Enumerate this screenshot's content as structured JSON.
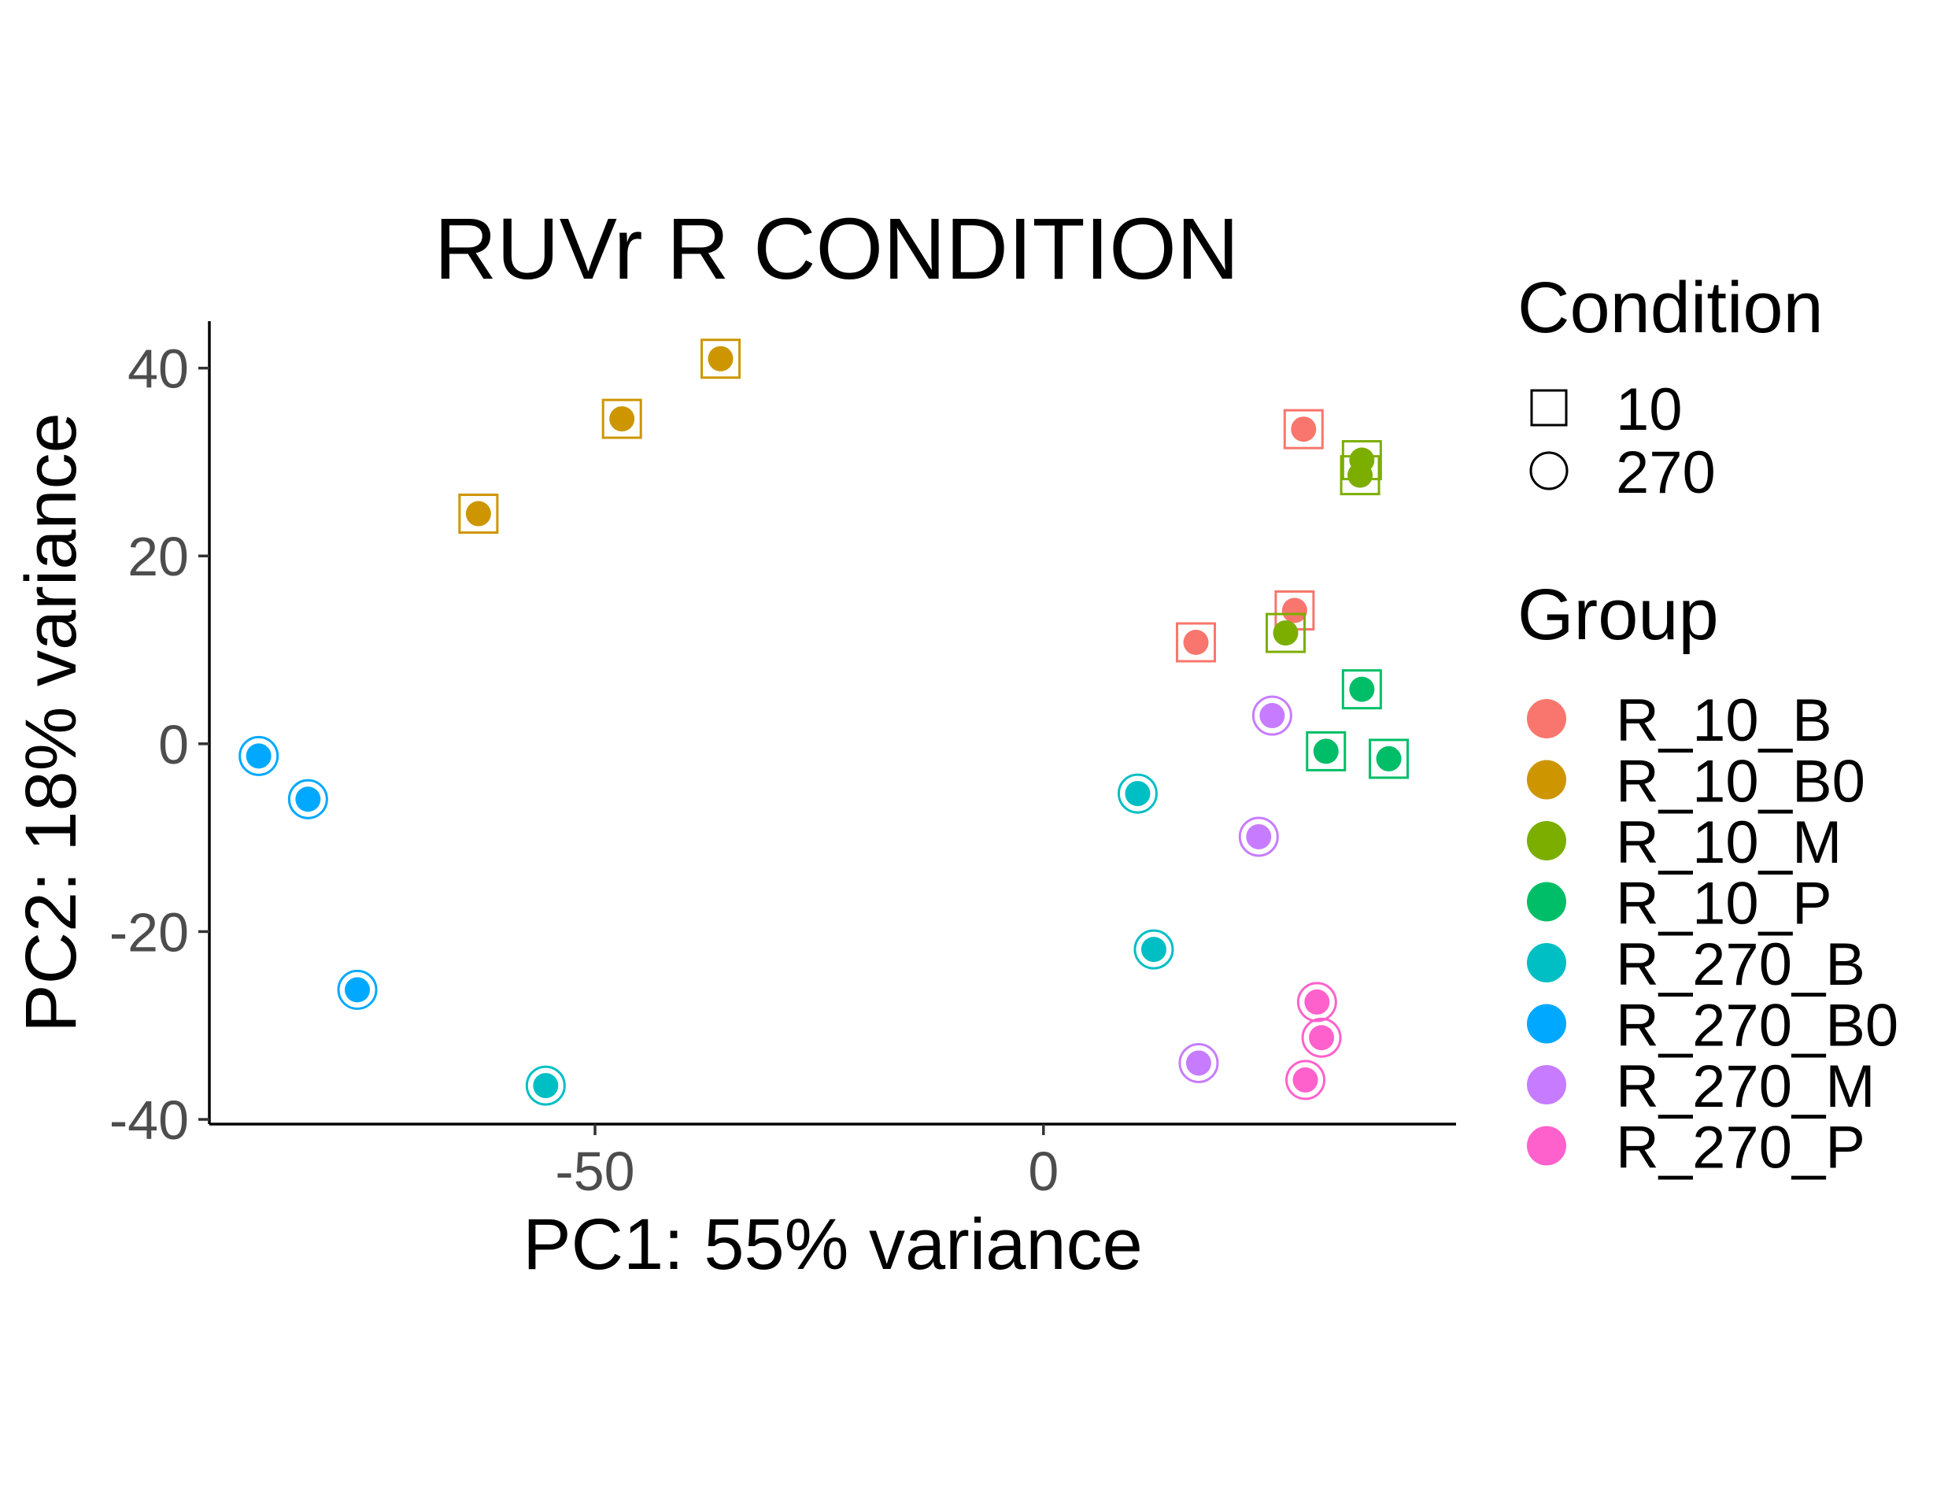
{
  "chart_data": {
    "type": "scatter",
    "title": "RUVr R CONDITION",
    "xlabel": "PC1: 55% variance",
    "ylabel": "PC2: 18% variance",
    "xlim": [
      -93,
      46
    ],
    "ylim": [
      -40.5,
      45
    ],
    "xticks": [
      {
        "value": -50,
        "label": "-50"
      },
      {
        "value": 0,
        "label": "0"
      }
    ],
    "yticks": [
      {
        "value": 40,
        "label": "40"
      },
      {
        "value": 20,
        "label": "20"
      },
      {
        "value": 0,
        "label": "0"
      },
      {
        "value": -20,
        "label": "-20"
      },
      {
        "value": -40,
        "label": "-40"
      }
    ],
    "grid": false,
    "legend_position": "right",
    "shape_legend": {
      "title": "Condition",
      "items": [
        {
          "label": "10",
          "shape": "square"
        },
        {
          "label": "270",
          "shape": "circle"
        }
      ]
    },
    "color_legend": {
      "title": "Group",
      "items": [
        {
          "label": "R_10_B",
          "color": "#F8766D"
        },
        {
          "label": "R_10_B0",
          "color": "#CD9600"
        },
        {
          "label": "R_10_M",
          "color": "#7CAE00"
        },
        {
          "label": "R_10_P",
          "color": "#00BE67"
        },
        {
          "label": "R_270_B",
          "color": "#00BFC4"
        },
        {
          "label": "R_270_B0",
          "color": "#00A9FF"
        },
        {
          "label": "R_270_M",
          "color": "#C77CFF"
        },
        {
          "label": "R_270_P",
          "color": "#FF61CC"
        }
      ]
    },
    "series": [
      {
        "name": "R_10_B",
        "color": "#F8766D",
        "shape": "square",
        "points": [
          [
            17,
            10.8
          ],
          [
            28,
            14.2
          ],
          [
            29,
            33.5
          ]
        ]
      },
      {
        "name": "R_10_B0",
        "color": "#CD9600",
        "shape": "square",
        "points": [
          [
            -63,
            24.5
          ],
          [
            -47,
            34.6
          ],
          [
            -36,
            41
          ]
        ]
      },
      {
        "name": "R_10_M",
        "color": "#7CAE00",
        "shape": "square",
        "points": [
          [
            27,
            11.8
          ],
          [
            35.5,
            30.2
          ],
          [
            35.3,
            28.6
          ]
        ]
      },
      {
        "name": "R_10_P",
        "color": "#00BE67",
        "shape": "square",
        "points": [
          [
            35.5,
            5.8
          ],
          [
            31.5,
            -0.8
          ],
          [
            38.5,
            -1.6
          ]
        ]
      },
      {
        "name": "R_270_B",
        "color": "#00BFC4",
        "shape": "circle",
        "points": [
          [
            10.5,
            -5.3
          ],
          [
            12.3,
            -21.9
          ],
          [
            -55.5,
            -36.4
          ]
        ]
      },
      {
        "name": "R_270_B0",
        "color": "#00A9FF",
        "shape": "circle",
        "points": [
          [
            -87.5,
            -1.3
          ],
          [
            -82,
            -5.9
          ],
          [
            -76.5,
            -26.2
          ]
        ]
      },
      {
        "name": "R_270_M",
        "color": "#C77CFF",
        "shape": "circle",
        "points": [
          [
            25.5,
            3
          ],
          [
            24,
            -9.9
          ],
          [
            17.3,
            -34
          ]
        ]
      },
      {
        "name": "R_270_P",
        "color": "#FF61CC",
        "shape": "circle",
        "points": [
          [
            30.5,
            -27.5
          ],
          [
            31,
            -31.3
          ],
          [
            29.2,
            -35.8
          ]
        ]
      }
    ]
  }
}
